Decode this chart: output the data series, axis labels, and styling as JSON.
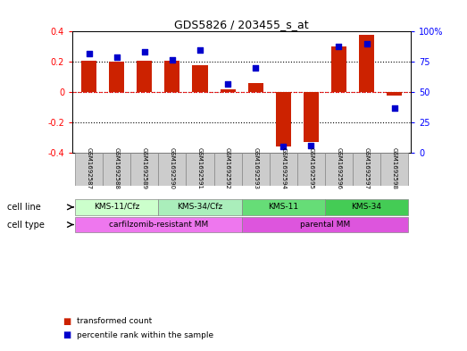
{
  "title": "GDS5826 / 203455_s_at",
  "samples": [
    "GSM1692587",
    "GSM1692588",
    "GSM1692589",
    "GSM1692590",
    "GSM1692591",
    "GSM1692592",
    "GSM1692593",
    "GSM1692594",
    "GSM1692595",
    "GSM1692596",
    "GSM1692597",
    "GSM1692598"
  ],
  "transformed_count": [
    0.21,
    0.2,
    0.21,
    0.21,
    0.18,
    0.02,
    0.06,
    -0.36,
    -0.33,
    0.3,
    0.38,
    -0.02
  ],
  "percentile_rank": [
    82,
    79,
    83,
    77,
    85,
    57,
    70,
    5,
    6,
    88,
    90,
    37
  ],
  "ylim_left": [
    -0.4,
    0.4
  ],
  "ylim_right": [
    0,
    100
  ],
  "yticks_left": [
    -0.4,
    -0.2,
    0.0,
    0.2,
    0.4
  ],
  "yticks_right": [
    0,
    25,
    50,
    75,
    100
  ],
  "ytick_labels_right": [
    "0",
    "25",
    "50",
    "75",
    "100%"
  ],
  "bar_color": "#cc2200",
  "dot_color": "#0000cc",
  "cell_line_groups": [
    {
      "label": "KMS-11/Cfz",
      "start": 0,
      "end": 3,
      "color": "#ccffcc"
    },
    {
      "label": "KMS-34/Cfz",
      "start": 3,
      "end": 6,
      "color": "#aaeebb"
    },
    {
      "label": "KMS-11",
      "start": 6,
      "end": 9,
      "color": "#66dd77"
    },
    {
      "label": "KMS-34",
      "start": 9,
      "end": 12,
      "color": "#44cc55"
    }
  ],
  "cell_type_groups": [
    {
      "label": "carfilzomib-resistant MM",
      "start": 0,
      "end": 6,
      "color": "#ee77ee"
    },
    {
      "label": "parental MM",
      "start": 6,
      "end": 12,
      "color": "#dd55dd"
    }
  ],
  "cell_line_label": "cell line",
  "cell_type_label": "cell type",
  "legend_bar_label": "transformed count",
  "legend_dot_label": "percentile rank within the sample",
  "sample_box_color": "#cccccc",
  "plot_bg_color": "#ffffff",
  "bar_width": 0.55
}
